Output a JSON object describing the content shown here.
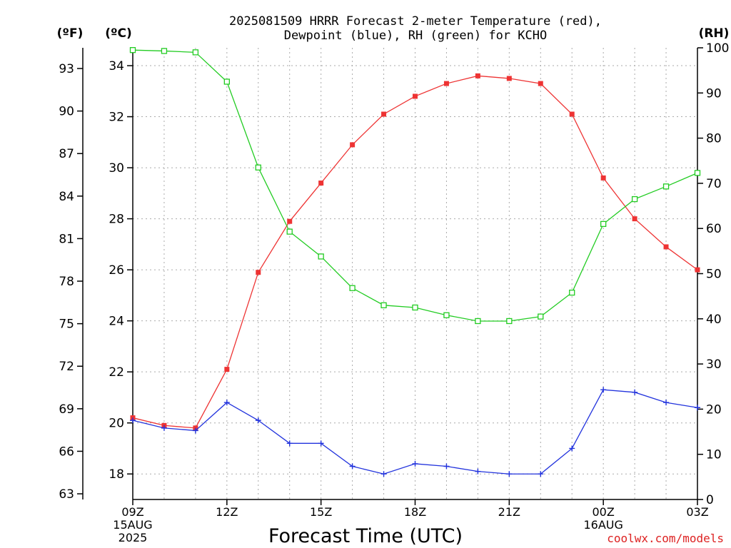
{
  "chart_data": {
    "type": "line",
    "title_lines": [
      "2025081509 HRRR Forecast 2-meter Temperature (red),",
      "Dewpoint (blue), RH (green) for KCHO"
    ],
    "xlabel": "Forecast Time (UTC)",
    "credit": "coolwx.com/models",
    "left_f_unit": "(ºF)",
    "left_c_unit": "(ºC)",
    "right_unit": "(RH)",
    "x_hours": [
      0,
      1,
      2,
      3,
      4,
      5,
      6,
      7,
      8,
      9,
      10,
      11,
      12,
      13,
      14,
      15,
      16,
      17,
      18
    ],
    "xlim": [
      0,
      18
    ],
    "x_ticks": [
      {
        "hour": 0,
        "label": "09Z",
        "sub1": "15AUG",
        "sub2": "2025"
      },
      {
        "hour": 3,
        "label": "12Z",
        "sub1": "",
        "sub2": ""
      },
      {
        "hour": 6,
        "label": "15Z",
        "sub1": "",
        "sub2": ""
      },
      {
        "hour": 9,
        "label": "18Z",
        "sub1": "",
        "sub2": ""
      },
      {
        "hour": 12,
        "label": "21Z",
        "sub1": "",
        "sub2": ""
      },
      {
        "hour": 15,
        "label": "00Z",
        "sub1": "16AUG",
        "sub2": ""
      },
      {
        "hour": 18,
        "label": "03Z",
        "sub1": "",
        "sub2": ""
      }
    ],
    "c_lim": [
      17.0,
      34.7
    ],
    "c_ticks": [
      18,
      20,
      22,
      24,
      26,
      28,
      30,
      32,
      34
    ],
    "f_ticks": [
      63,
      66,
      69,
      72,
      75,
      78,
      81,
      84,
      87,
      90,
      93
    ],
    "rh_lim": [
      0,
      100
    ],
    "rh_ticks": [
      0,
      10,
      20,
      30,
      40,
      50,
      60,
      70,
      80,
      90,
      100
    ],
    "grid": true,
    "series": [
      {
        "name": "Temperature",
        "axis": "C",
        "color": "#ee3333",
        "marker": "filled-square",
        "values": [
          20.2,
          19.9,
          19.8,
          22.1,
          25.9,
          27.9,
          29.4,
          30.9,
          32.1,
          32.8,
          33.3,
          33.6,
          33.5,
          33.3,
          32.1,
          29.6,
          28.0,
          26.9,
          26.0
        ]
      },
      {
        "name": "Dewpoint",
        "axis": "C",
        "color": "#2233dd",
        "marker": "plus",
        "values": [
          20.1,
          19.8,
          19.7,
          20.8,
          20.1,
          19.2,
          19.2,
          18.3,
          18.0,
          18.4,
          18.3,
          18.1,
          18.0,
          18.0,
          19.0,
          21.3,
          21.2,
          20.8,
          20.6
        ]
      },
      {
        "name": "RH",
        "axis": "RH",
        "color": "#22cc22",
        "marker": "open-square",
        "values": [
          99.5,
          99.3,
          99.0,
          92.5,
          73.5,
          59.3,
          53.8,
          46.8,
          43.0,
          42.5,
          40.8,
          39.5,
          39.5,
          40.5,
          45.8,
          61.0,
          66.5,
          69.3,
          72.3
        ]
      }
    ]
  }
}
